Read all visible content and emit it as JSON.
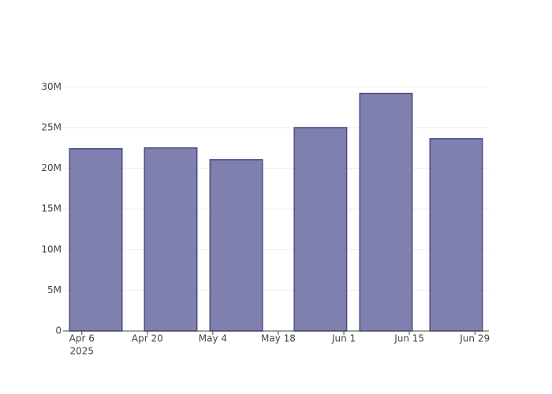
{
  "chart_data": {
    "type": "bar",
    "x": [
      "2025-04-09",
      "2025-04-25",
      "2025-05-09",
      "2025-05-27",
      "2025-06-10",
      "2025-06-25"
    ],
    "values": [
      22400000,
      22500000,
      21050000,
      25000000,
      29200000,
      23650000
    ],
    "color": "#7f7fb0",
    "edge_color": "#4b4b80",
    "xlim": [
      "2025-04-02",
      "2025-07-02"
    ],
    "xticks": [
      {
        "value": "2025-04-06",
        "label": "Apr 6"
      },
      {
        "value": "2025-04-20",
        "label": "Apr 20"
      },
      {
        "value": "2025-05-04",
        "label": "May 4"
      },
      {
        "value": "2025-05-18",
        "label": "May 18"
      },
      {
        "value": "2025-06-01",
        "label": "Jun 1"
      },
      {
        "value": "2025-06-15",
        "label": "Jun 15"
      },
      {
        "value": "2025-06-29",
        "label": "Jun 29"
      }
    ],
    "x_year_label": "2025",
    "ylim": [
      0,
      31000000
    ],
    "yticks": [
      0,
      {
        "value": 5000000,
        "label": "5M"
      },
      {
        "value": 10000000,
        "label": "10M"
      },
      {
        "value": 15000000,
        "label": "15M"
      },
      {
        "value": 20000000,
        "label": "20M"
      },
      {
        "value": 25000000,
        "label": "25M"
      },
      {
        "value": 30000000,
        "label": "30M"
      }
    ],
    "grid": true
  }
}
